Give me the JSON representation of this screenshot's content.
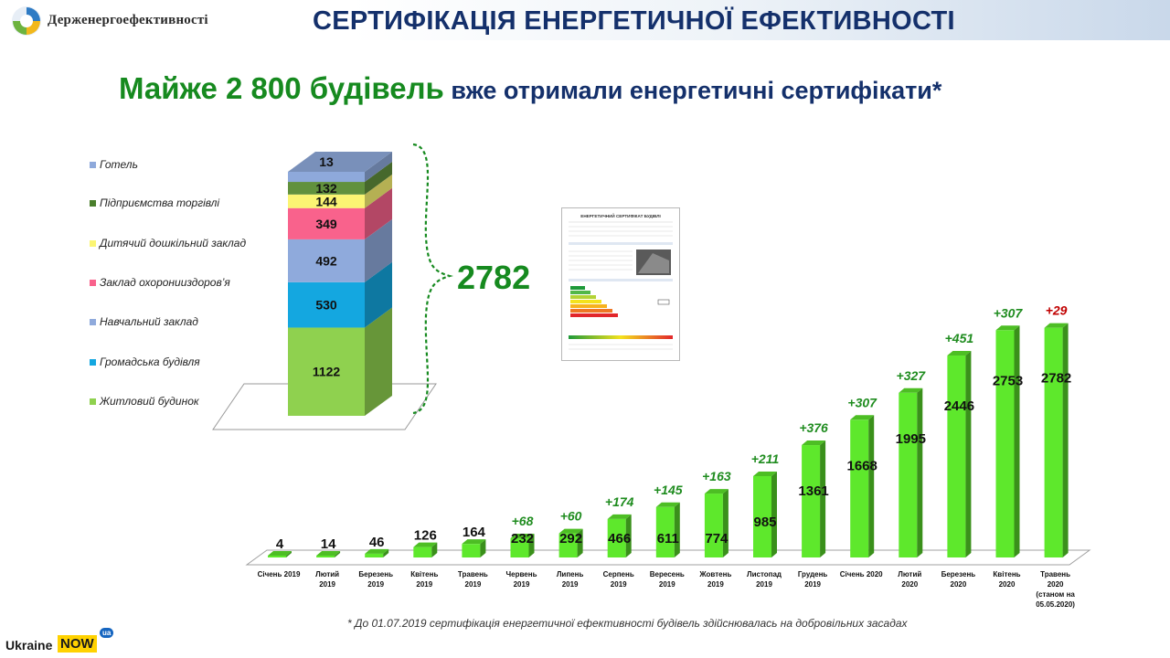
{
  "header": {
    "org_name": "Держенергоефективності",
    "title": "СЕРТИФІКАЦІЯ ЕНЕРГЕТИЧНОЇ ЕФЕКТИВНОСТІ"
  },
  "subtitle": {
    "highlight": "Майже 2 800 будівель",
    "rest": " вже отримали енергетичні сертифікати*"
  },
  "chart_data": [
    {
      "type": "bar",
      "stacked": true,
      "categories": [
        "Житловий будинок",
        "Громадська будівля",
        "Навчальний заклад",
        "Заклад охоронииздоров’я",
        "Дитячий дошкільний заклад",
        "Підприємства торгівлі",
        "Готель"
      ],
      "values": [
        1122,
        530,
        492,
        349,
        144,
        132,
        13
      ],
      "colors": [
        "#8fd14f",
        "#14a7e0",
        "#8faadc",
        "#f9628c",
        "#fbf573",
        "#61913d",
        "#8ea9db"
      ],
      "total": "2782",
      "legend": "left"
    },
    {
      "type": "bar",
      "categories": [
        [
          "Січень 2019"
        ],
        [
          "Лютий",
          "2019"
        ],
        [
          "Березень",
          "2019"
        ],
        [
          "Квітень",
          "2019"
        ],
        [
          "Травень",
          "2019"
        ],
        [
          "Червень",
          "2019"
        ],
        [
          "Липень",
          "2019"
        ],
        [
          "Серпень",
          "2019"
        ],
        [
          "Вересень",
          "2019"
        ],
        [
          "Жовтень",
          "2019"
        ],
        [
          "Листопад",
          "2019"
        ],
        [
          "Грудень",
          "2019"
        ],
        [
          "Січень 2020"
        ],
        [
          "Лютий",
          "2020"
        ],
        [
          "Березень",
          "2020"
        ],
        [
          "Квітень",
          "2020"
        ],
        [
          "Травень",
          "2020",
          "(станом на",
          "05.05.2020)"
        ]
      ],
      "values": [
        4,
        14,
        46,
        126,
        164,
        232,
        292,
        466,
        611,
        774,
        985,
        1361,
        1668,
        1995,
        2446,
        2753,
        2782
      ],
      "increments": [
        "",
        "",
        "",
        "",
        "",
        "+68",
        "+60",
        "+174",
        "+145",
        "+163",
        "+211",
        "+376",
        "+307",
        "+327",
        "+451",
        "+307",
        "+29"
      ],
      "increment_colors": {
        "default": "#1f8c1f",
        "last": "#c00000"
      },
      "bar_color": "#5ee82c",
      "ylim": [
        0,
        2900
      ]
    }
  ],
  "certificate": {
    "heading": "ЕНЕРГЕТИЧНИЙ СЕРТИФІКАТ БУДІВЛІ"
  },
  "footnote": "* До 01.07.2019  сертифікація енергетичної ефективності будівель здійснювалась на добровільних засадах",
  "footer": {
    "brand_text": "Ukraine",
    "brand_now": "NOW",
    "brand_badge": "ua"
  }
}
